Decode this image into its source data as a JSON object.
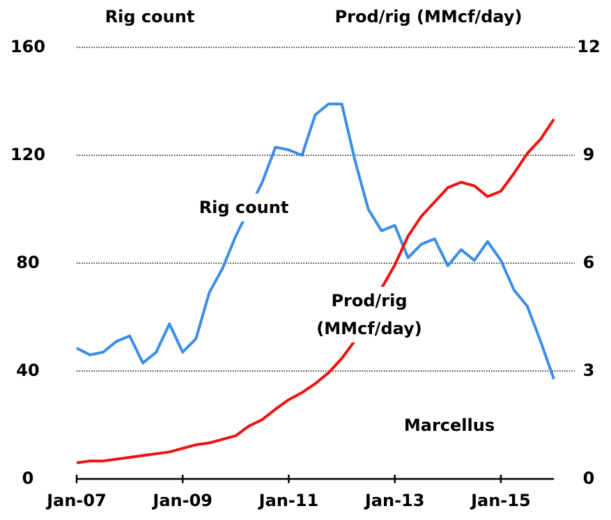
{
  "chart_data": {
    "type": "line",
    "y_label": "Rig count",
    "y2_label": "Prod/rig (MMcf/day)",
    "annotation": "Marcellus",
    "categories": [
      "Jan-07",
      null,
      null,
      null,
      null,
      null,
      null,
      null,
      "Jan-09",
      null,
      null,
      null,
      null,
      null,
      null,
      null,
      "Jan-11",
      null,
      null,
      null,
      null,
      null,
      null,
      null,
      "Jan-13",
      null,
      null,
      null,
      null,
      null,
      null,
      null,
      "Jan-15",
      null,
      null,
      null,
      null
    ],
    "series": [
      {
        "name": "Rig count",
        "color": "#3c8de6",
        "values": [
          48.5,
          46,
          47,
          51,
          53,
          43,
          47,
          57.5,
          47,
          52,
          69,
          78,
          90,
          100,
          110,
          123,
          122,
          120,
          135,
          139,
          139,
          118,
          100,
          92,
          94,
          82,
          87,
          89,
          79,
          85,
          81,
          88,
          81,
          70,
          64,
          51,
          37
        ]
      },
      {
        "name": "Prod/rig (MMcf/day)",
        "color": "#ee1111",
        "axis": "y2",
        "values": [
          0.45,
          0.5,
          0.5,
          0.55,
          0.6,
          0.65,
          0.7,
          0.75,
          0.85,
          0.95,
          1.0,
          1.1,
          1.2,
          1.47,
          1.65,
          1.94,
          2.2,
          2.4,
          2.65,
          2.95,
          3.35,
          3.85,
          4.6,
          5.3,
          5.95,
          6.75,
          7.3,
          7.7,
          8.1,
          8.25,
          8.15,
          7.85,
          8.0,
          8.5,
          9.05,
          9.45,
          10.0
        ]
      }
    ],
    "ylim": [
      0,
      160
    ],
    "yticks": [
      0,
      40,
      80,
      120,
      160
    ],
    "y2lim": [
      0,
      12
    ],
    "y2ticks": [
      0,
      3,
      6,
      9,
      12
    ],
    "grid": true
  }
}
